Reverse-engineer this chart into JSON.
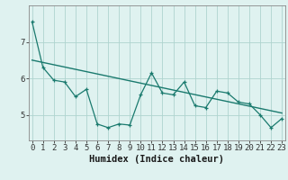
{
  "x": [
    0,
    1,
    2,
    3,
    4,
    5,
    6,
    7,
    8,
    9,
    10,
    11,
    12,
    13,
    14,
    15,
    16,
    17,
    18,
    19,
    20,
    21,
    22,
    23
  ],
  "y": [
    7.55,
    6.3,
    5.95,
    5.9,
    5.5,
    5.7,
    4.75,
    4.65,
    4.75,
    4.72,
    5.55,
    6.15,
    5.6,
    5.55,
    5.9,
    5.25,
    5.2,
    5.65,
    5.6,
    5.35,
    5.3,
    5.0,
    4.65,
    4.9
  ],
  "trend_x": [
    0,
    23
  ],
  "trend_y": [
    6.5,
    5.05
  ],
  "line_color": "#1a7a6e",
  "trend_color": "#1a7a6e",
  "bg_color": "#dff2f0",
  "grid_color": "#aed4cf",
  "xlabel": "Humidex (Indice chaleur)",
  "yticks": [
    5,
    6,
    7
  ],
  "xlim": [
    -0.3,
    23.3
  ],
  "ylim": [
    4.3,
    8.0
  ],
  "xlabel_fontsize": 7.5,
  "tick_fontsize": 6.5
}
